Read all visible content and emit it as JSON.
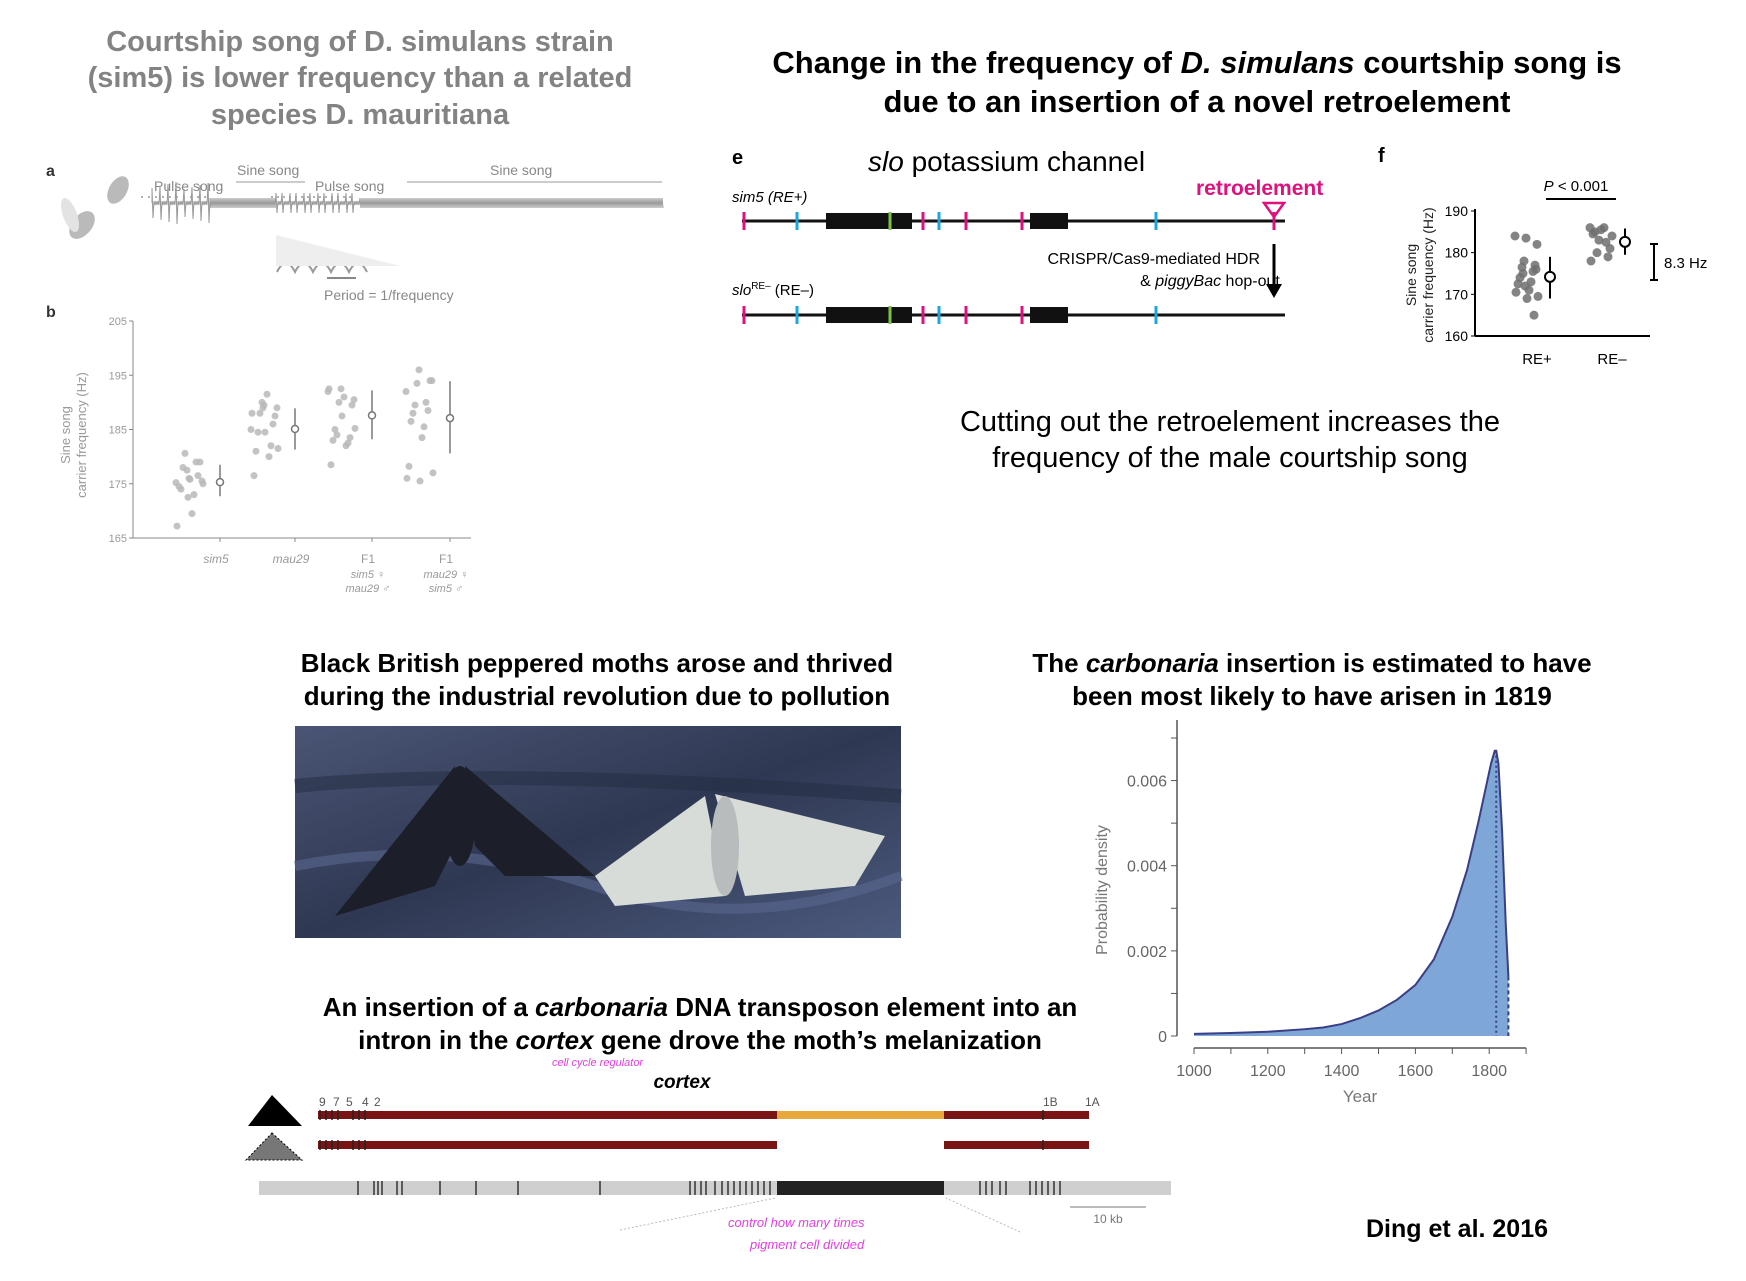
{
  "sim_title": {
    "line1": "Courtship song of D. simulans strain",
    "line2": "(sim5) is lower frequency than a related",
    "line3": "species D. mauritiana"
  },
  "retro_title": {
    "part1": "Change in the frequency of ",
    "italic": "D. simulans",
    "part2": " courtship song is",
    "line2": "due to an insertion of a novel retroelement"
  },
  "panel_a": {
    "label": "a",
    "sine1": "Sine song",
    "pulse1": "Pulse song",
    "pulse2": "Pulse song",
    "sine2": "Sine song",
    "period": "Period = 1/frequency"
  },
  "panel_e": {
    "label": "e",
    "gene_italic": "slo",
    "gene_rest": " potassium channel",
    "row1": "sim5 (RE+)",
    "row2_italic": "slo",
    "row2_sup": "RE–",
    "row2_rest": " (RE–)",
    "retro_label": "retroelement",
    "method1": "CRISPR/Cas9-mediated HDR",
    "method2_pre": "& ",
    "method2_italic": "piggyBac",
    "method2_post": " hop-out",
    "colors": {
      "magenta": "#e0117f",
      "cyan": "#1aa7e0",
      "green": "#7dc242"
    }
  },
  "caption": {
    "line1": "Cutting out the retroelement increases the",
    "line2": "frequency of the male courtship song"
  },
  "moth_title": {
    "line1": "Black British peppered moths arose and thrived",
    "line2": "during the industrial revolution due to pollution"
  },
  "carb_title": {
    "pre": "The ",
    "italic": "carbonaria",
    "post": " insertion is estimated to have",
    "line2": "been most likely to have arisen in 1819"
  },
  "insert_title": {
    "pre": "An insertion of a ",
    "italic": "carbonaria",
    "post": " DNA transposon element into an",
    "l2pre": "intron in the ",
    "l2italic": "cortex",
    "l2post": " gene drove the moth’s melanization"
  },
  "cortex": {
    "gene": "cortex",
    "exons_left": [
      "9",
      "7",
      "5",
      "4",
      "2"
    ],
    "exons_right": [
      "1B",
      "1A"
    ],
    "scale": "10 kb",
    "note1": "cell cycle regulator",
    "note2a": "control how many times",
    "note2b": "pigment cell divided",
    "colors": {
      "gene": "#7a1414",
      "insert": "#e8a93a"
    }
  },
  "citation": "Ding et al. 2016",
  "chart_data": [
    {
      "type": "scatter",
      "panel": "b",
      "ylabel_line1": "Sine song",
      "ylabel_line2": "carrier frequency (Hz)",
      "ylim": [
        165,
        205
      ],
      "yticks": [
        165,
        175,
        185,
        195,
        205
      ],
      "categories": [
        {
          "name": "sim5",
          "sub1": "",
          "sub2": ""
        },
        {
          "name": "mau29",
          "sub1": "",
          "sub2": ""
        },
        {
          "name": "F1",
          "sub1": "sim5 ♀",
          "sub2": "mau29 ♂"
        },
        {
          "name": "F1",
          "sub1": "mau29 ♀",
          "sub2": "sim5 ♂"
        }
      ],
      "points": [
        [
          175.2,
          176,
          175.5,
          177.5,
          179,
          180.6,
          176.5,
          178,
          179,
          174,
          173,
          174.5,
          169.5,
          167.2,
          175.8,
          175,
          172.5
        ],
        [
          185,
          189.5,
          189,
          190,
          187.5,
          188,
          186,
          184.5,
          182,
          181,
          180,
          176.5,
          191.5,
          188,
          184.5,
          181.5,
          189
        ],
        [
          192,
          192.5,
          190.5,
          190,
          189.5,
          184,
          183.5,
          185,
          182.5,
          183,
          182,
          178.5,
          191,
          192.5,
          187.5,
          185.2
        ],
        [
          192,
          196,
          194,
          193.5,
          194,
          189.5,
          188.5,
          188,
          190,
          186.5,
          185.5,
          178.2,
          183.5,
          176,
          175.5,
          177
        ]
      ],
      "means": [
        175.3,
        185.1,
        187.6,
        187.1
      ],
      "err_low": [
        172.7,
        181.3,
        183.2,
        180.6
      ],
      "err_high": [
        178.5,
        188.9,
        192.2,
        193.9
      ],
      "colors": {
        "points": "#b8b8b8",
        "axis": "#8a8a8a"
      }
    },
    {
      "type": "scatter",
      "panel": "f",
      "label": "f",
      "ylabel_line1": "Sine song",
      "ylabel_line2": "carrier frequency (Hz)",
      "ylim": [
        160,
        190
      ],
      "yticks": [
        160,
        170,
        180,
        190
      ],
      "categories": [
        "RE+",
        "RE–"
      ],
      "points": [
        [
          184,
          183.5,
          182,
          178,
          177,
          176.5,
          175.5,
          174,
          173,
          172.5,
          171,
          170.5,
          169,
          169.5,
          172,
          176,
          175,
          165
        ],
        [
          186,
          185.5,
          184,
          183,
          181,
          180,
          179,
          185,
          182.5,
          184.5,
          186,
          178
        ]
      ],
      "means": [
        174.2,
        182.6
      ],
      "err_low": [
        169,
        179.5
      ],
      "err_high": [
        179,
        185.8
      ],
      "p_value_italic": "P",
      "p_value_rest": " < 0.001",
      "difference": "8.3 Hz",
      "colors": {
        "points": "#6e6e6e"
      }
    },
    {
      "type": "area",
      "xlabel": "Year",
      "ylabel": "Probability density",
      "xlim": [
        1000,
        1900
      ],
      "xticks": [
        1000,
        1200,
        1400,
        1600,
        1800
      ],
      "ylim": [
        0,
        0.007
      ],
      "yticks": [
        0,
        0.002,
        0.004,
        0.006
      ],
      "ytick_labels": [
        "0",
        "0.002",
        "0.004",
        "0.006"
      ],
      "x": [
        1000,
        1100,
        1200,
        1300,
        1350,
        1400,
        1450,
        1500,
        1550,
        1600,
        1650,
        1700,
        1740,
        1770,
        1790,
        1805,
        1815,
        1819,
        1825,
        1835,
        1845,
        1852
      ],
      "y": [
        5e-05,
        7e-05,
        0.0001,
        0.00016,
        0.0002,
        0.00028,
        0.00042,
        0.0006,
        0.00085,
        0.0012,
        0.0018,
        0.0028,
        0.0039,
        0.005,
        0.0058,
        0.0064,
        0.0067,
        0.0067,
        0.0064,
        0.0048,
        0.0026,
        0.0014
      ],
      "mode_year": 1819,
      "colors": {
        "fill": "#7ea6d6",
        "line": "#3a3f85"
      }
    }
  ]
}
